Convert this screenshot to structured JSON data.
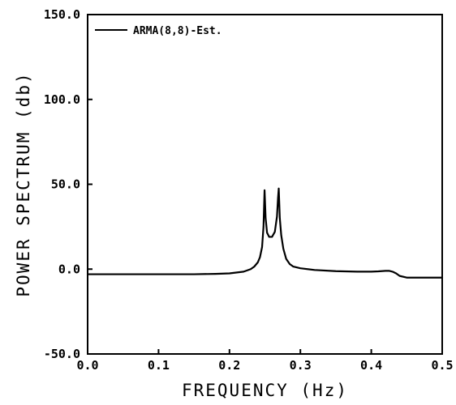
{
  "chart_data": {
    "type": "line",
    "title": "",
    "xlabel": "FREQUENCY (Hz)",
    "ylabel": "POWER SPECTRUM (db)",
    "xlim": [
      0.0,
      0.5
    ],
    "ylim": [
      -50.0,
      150.0
    ],
    "x_ticks": [
      0.0,
      0.1,
      0.2,
      0.3,
      0.4,
      0.5
    ],
    "x_tick_labels": [
      "0.0",
      "0.1",
      "0.2",
      "0.3",
      "0.4",
      "0.5"
    ],
    "y_ticks": [
      -50.0,
      0.0,
      50.0,
      100.0,
      150.0
    ],
    "y_tick_labels": [
      "-50.0",
      "0.0",
      "50.0",
      "100.0",
      "150.0"
    ],
    "grid": false,
    "legend_position": "top-left",
    "series": [
      {
        "name": "ARMA(8,8)-Est.",
        "color": "#000000",
        "x": [
          0.0,
          0.05,
          0.1,
          0.15,
          0.18,
          0.2,
          0.22,
          0.23,
          0.235,
          0.24,
          0.243,
          0.246,
          0.248,
          0.2495,
          0.251,
          0.253,
          0.256,
          0.26,
          0.264,
          0.267,
          0.2685,
          0.2695,
          0.271,
          0.273,
          0.276,
          0.28,
          0.285,
          0.29,
          0.3,
          0.32,
          0.35,
          0.38,
          0.4,
          0.41,
          0.42,
          0.425,
          0.43,
          0.435,
          0.44,
          0.45,
          0.46,
          0.48,
          0.5
        ],
        "y": [
          -3.0,
          -3.0,
          -3.0,
          -3.0,
          -2.8,
          -2.5,
          -1.5,
          0.0,
          1.5,
          4.0,
          7.0,
          13.0,
          25.0,
          46.5,
          30.0,
          21.5,
          19.0,
          19.0,
          22.0,
          31.0,
          42.0,
          47.5,
          30.0,
          20.0,
          12.0,
          6.0,
          3.0,
          1.5,
          0.5,
          -0.5,
          -1.2,
          -1.5,
          -1.5,
          -1.3,
          -1.0,
          -1.0,
          -1.5,
          -2.5,
          -4.0,
          -5.0,
          -5.0,
          -5.0,
          -5.0
        ]
      }
    ]
  }
}
